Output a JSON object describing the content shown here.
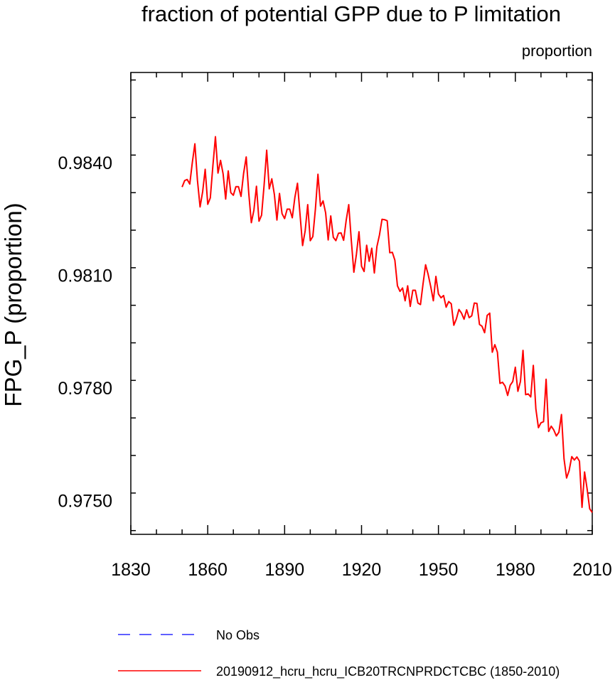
{
  "chart_data": {
    "type": "line",
    "title": "fraction of potential GPP due to P limitation",
    "units_label": "proportion",
    "ylabel": "FPG_P  (proportion)",
    "xlabel": "",
    "xlim": [
      1830,
      2010
    ],
    "ylim": [
      0.9741,
      0.9864
    ],
    "x_ticks": [
      "1830",
      "1860",
      "1890",
      "1920",
      "1950",
      "1980",
      "2010"
    ],
    "y_ticks": [
      "0.9750",
      "0.9780",
      "0.9810",
      "0.9840"
    ],
    "grid": false,
    "legend_position": "bottom",
    "legend": [
      {
        "name": "No Obs",
        "color": "#0000ff",
        "style": "dashed"
      },
      {
        "name": "20190912_hcru_hcru_ICB20TRCNPRDCTCBC (1850-2010)",
        "color": "#ff0000",
        "style": "solid"
      }
    ],
    "series": [
      {
        "name": "20190912_hcru_hcru_ICB20TRCNPRDCTCBC (1850-2010)",
        "color": "#ff0000",
        "x_start": 1850,
        "x_step": 1,
        "values": [
          0.98335,
          0.98352,
          0.98355,
          0.98343,
          0.984,
          0.9845,
          0.98353,
          0.98282,
          0.98322,
          0.98382,
          0.98289,
          0.98306,
          0.98391,
          0.98469,
          0.98372,
          0.98406,
          0.9837,
          0.98303,
          0.98378,
          0.9832,
          0.98313,
          0.98336,
          0.98336,
          0.9831,
          0.98371,
          0.98415,
          0.98318,
          0.9824,
          0.98273,
          0.98337,
          0.98244,
          0.9826,
          0.98341,
          0.98433,
          0.9833,
          0.98357,
          0.98315,
          0.98247,
          0.98318,
          0.98264,
          0.98251,
          0.98276,
          0.98276,
          0.98253,
          0.98308,
          0.98345,
          0.98262,
          0.98179,
          0.98218,
          0.98288,
          0.98192,
          0.98203,
          0.98276,
          0.98369,
          0.98284,
          0.98298,
          0.98266,
          0.98194,
          0.98258,
          0.98201,
          0.98192,
          0.98212,
          0.98213,
          0.98193,
          0.98246,
          0.98288,
          0.98193,
          0.98108,
          0.98156,
          0.98216,
          0.98124,
          0.9811,
          0.9818,
          0.98137,
          0.98172,
          0.98106,
          0.98176,
          0.98207,
          0.98249,
          0.98248,
          0.98245,
          0.9816,
          0.98161,
          0.9814,
          0.98072,
          0.98057,
          0.98066,
          0.98032,
          0.98072,
          0.98017,
          0.9806,
          0.9806,
          0.98026,
          0.98022,
          0.98077,
          0.98128,
          0.98102,
          0.98069,
          0.98032,
          0.98097,
          0.9805,
          0.9804,
          0.98046,
          0.98015,
          0.9803,
          0.98024,
          0.97967,
          0.97984,
          0.98009,
          0.97999,
          0.97983,
          0.98008,
          0.97987,
          0.97992,
          0.98026,
          0.98025,
          0.97969,
          0.97964,
          0.97947,
          0.97993,
          0.97999,
          0.97895,
          0.97915,
          0.97895,
          0.97812,
          0.97815,
          0.97805,
          0.9778,
          0.97807,
          0.97817,
          0.97855,
          0.97791,
          0.97817,
          0.979,
          0.97782,
          0.97784,
          0.97776,
          0.9786,
          0.97744,
          0.97694,
          0.97707,
          0.9771,
          0.97823,
          0.97684,
          0.97698,
          0.97688,
          0.97672,
          0.97682,
          0.97729,
          0.97611,
          0.9756,
          0.9758,
          0.97617,
          0.97608,
          0.97616,
          0.97605,
          0.97482,
          0.97576,
          0.97531,
          0.97478,
          0.97468
        ]
      }
    ]
  }
}
